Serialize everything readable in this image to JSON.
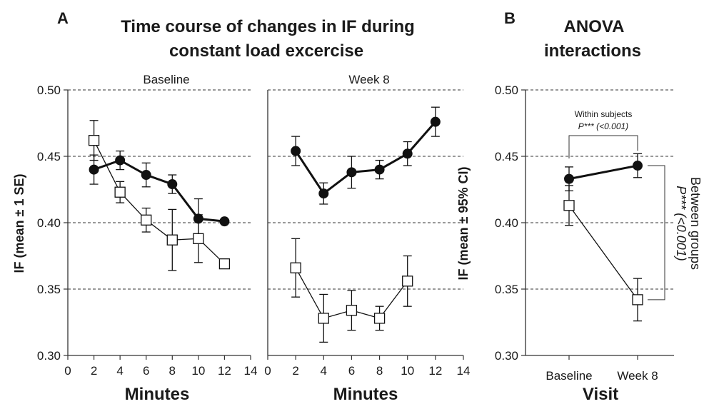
{
  "panel_a": {
    "letter": "A",
    "title_line1": "Time course of changes in IF during",
    "title_line2": "constant  load excercise",
    "ylabel": "IF (mean ± 1 SE)",
    "xlabel": "Minutes"
  },
  "panel_b": {
    "letter": "B",
    "title_line1": "ANOVA",
    "title_line2": "interactions",
    "ylabel": "IF (mean ± 95% CI)",
    "xlabel": "Visit",
    "within_label": "Within subjects",
    "within_p": "P*** (<0.001)",
    "between_label": "Between groups",
    "between_p": "P*** (<0.001)"
  },
  "chart_data": [
    {
      "type": "line",
      "title": "Baseline",
      "xlabel": "Minutes",
      "ylabel": "IF (mean ± 1 SE)",
      "xlim": [
        0,
        14
      ],
      "ylim": [
        0.3,
        0.5
      ],
      "xticks": [
        0,
        2,
        4,
        6,
        8,
        10,
        12,
        14
      ],
      "yticks": [
        "0.30",
        "0.35",
        "0.40",
        "0.45",
        "0.50"
      ],
      "grid": "dashed horizontal",
      "series": [
        {
          "marker": "filled-circle",
          "x": [
            2,
            4,
            6,
            8,
            10,
            12
          ],
          "y": [
            0.44,
            0.447,
            0.436,
            0.429,
            0.403,
            0.401
          ],
          "err": [
            0.011,
            0.007,
            0.009,
            0.007,
            0.015,
            0.001
          ]
        },
        {
          "marker": "open-square",
          "x": [
            2,
            4,
            6,
            8,
            10,
            12
          ],
          "y": [
            0.462,
            0.423,
            0.402,
            0.387,
            0.388,
            0.369
          ],
          "err": [
            0.015,
            0.008,
            0.009,
            0.023,
            0.018,
            0.001
          ]
        }
      ]
    },
    {
      "type": "line",
      "title": "Week 8",
      "xlabel": "Minutes",
      "xlim": [
        0,
        14
      ],
      "ylim": [
        0.3,
        0.5
      ],
      "xticks": [
        0,
        2,
        4,
        6,
        8,
        10,
        12,
        14
      ],
      "grid": "dashed horizontal",
      "series": [
        {
          "marker": "filled-circle",
          "x": [
            2,
            4,
            6,
            8,
            10,
            12
          ],
          "y": [
            0.454,
            0.422,
            0.438,
            0.44,
            0.452,
            0.476
          ],
          "err": [
            0.011,
            0.008,
            0.012,
            0.007,
            0.009,
            0.011
          ]
        },
        {
          "marker": "open-square",
          "x": [
            2,
            4,
            6,
            8,
            10,
            12
          ],
          "y": [
            0.366,
            0.328,
            0.334,
            0.328,
            0.356,
            null
          ],
          "err": [
            0.022,
            0.018,
            0.015,
            0.009,
            0.019,
            null
          ]
        }
      ]
    },
    {
      "type": "line",
      "xlabel": "Visit",
      "ylabel": "IF (mean ± 95% CI)",
      "categories": [
        "Baseline",
        "Week 8"
      ],
      "ylim": [
        0.3,
        0.5
      ],
      "yticks": [
        "0.30",
        "0.35",
        "0.40",
        "0.45",
        "0.50"
      ],
      "grid": "dashed horizontal",
      "series": [
        {
          "marker": "filled-circle",
          "values": [
            0.433,
            0.443
          ],
          "err": [
            0.009,
            0.009
          ]
        },
        {
          "marker": "open-square",
          "values": [
            0.413,
            0.342
          ],
          "err": [
            0.015,
            0.016
          ]
        }
      ]
    }
  ]
}
